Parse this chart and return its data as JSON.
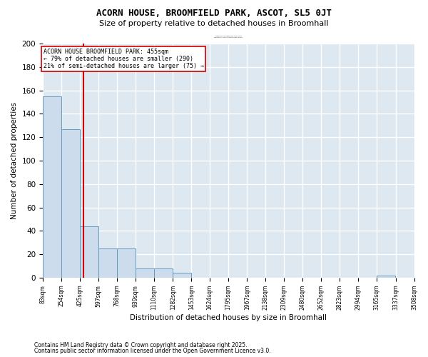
{
  "title": "ACORN HOUSE, BROOMFIELD PARK, ASCOT, SL5 0JT",
  "subtitle": "Size of property relative to detached houses in Broomhall",
  "xlabel": "Distribution of detached houses by size in Broomhall",
  "ylabel": "Number of detached properties",
  "bar_color": "#ccdcec",
  "bar_edge_color": "#6699bb",
  "background_color": "#dde8f0",
  "grid_color": "#ffffff",
  "fig_bg_color": "#ffffff",
  "bins": [
    83,
    254,
    425,
    597,
    768,
    939,
    1110,
    1282,
    1453,
    1624,
    1795,
    1967,
    2138,
    2309,
    2480,
    2652,
    2823,
    2994,
    3165,
    3337,
    3508
  ],
  "bin_labels": [
    "83sqm",
    "254sqm",
    "425sqm",
    "597sqm",
    "768sqm",
    "939sqm",
    "1110sqm",
    "1282sqm",
    "1453sqm",
    "1624sqm",
    "1795sqm",
    "1967sqm",
    "2138sqm",
    "2309sqm",
    "2480sqm",
    "2652sqm",
    "2823sqm",
    "2994sqm",
    "3165sqm",
    "3337sqm",
    "3508sqm"
  ],
  "heights": [
    155,
    127,
    44,
    25,
    25,
    8,
    8,
    4,
    0,
    0,
    0,
    0,
    0,
    0,
    0,
    0,
    0,
    0,
    2,
    0,
    0
  ],
  "vline_x": 455,
  "vline_color": "#cc0000",
  "annotation_text": "ACORN HOUSE BROOMFIELD PARK: 455sqm\n← 79% of detached houses are smaller (290)\n21% of semi-detached houses are larger (75) →",
  "annotation_box_color": "#ffffff",
  "annotation_box_edge": "#cc0000",
  "ylim": [
    0,
    200
  ],
  "yticks": [
    0,
    20,
    40,
    60,
    80,
    100,
    120,
    140,
    160,
    180,
    200
  ],
  "footer1": "Contains HM Land Registry data © Crown copyright and database right 2025.",
  "footer2": "Contains public sector information licensed under the Open Government Licence v3.0."
}
